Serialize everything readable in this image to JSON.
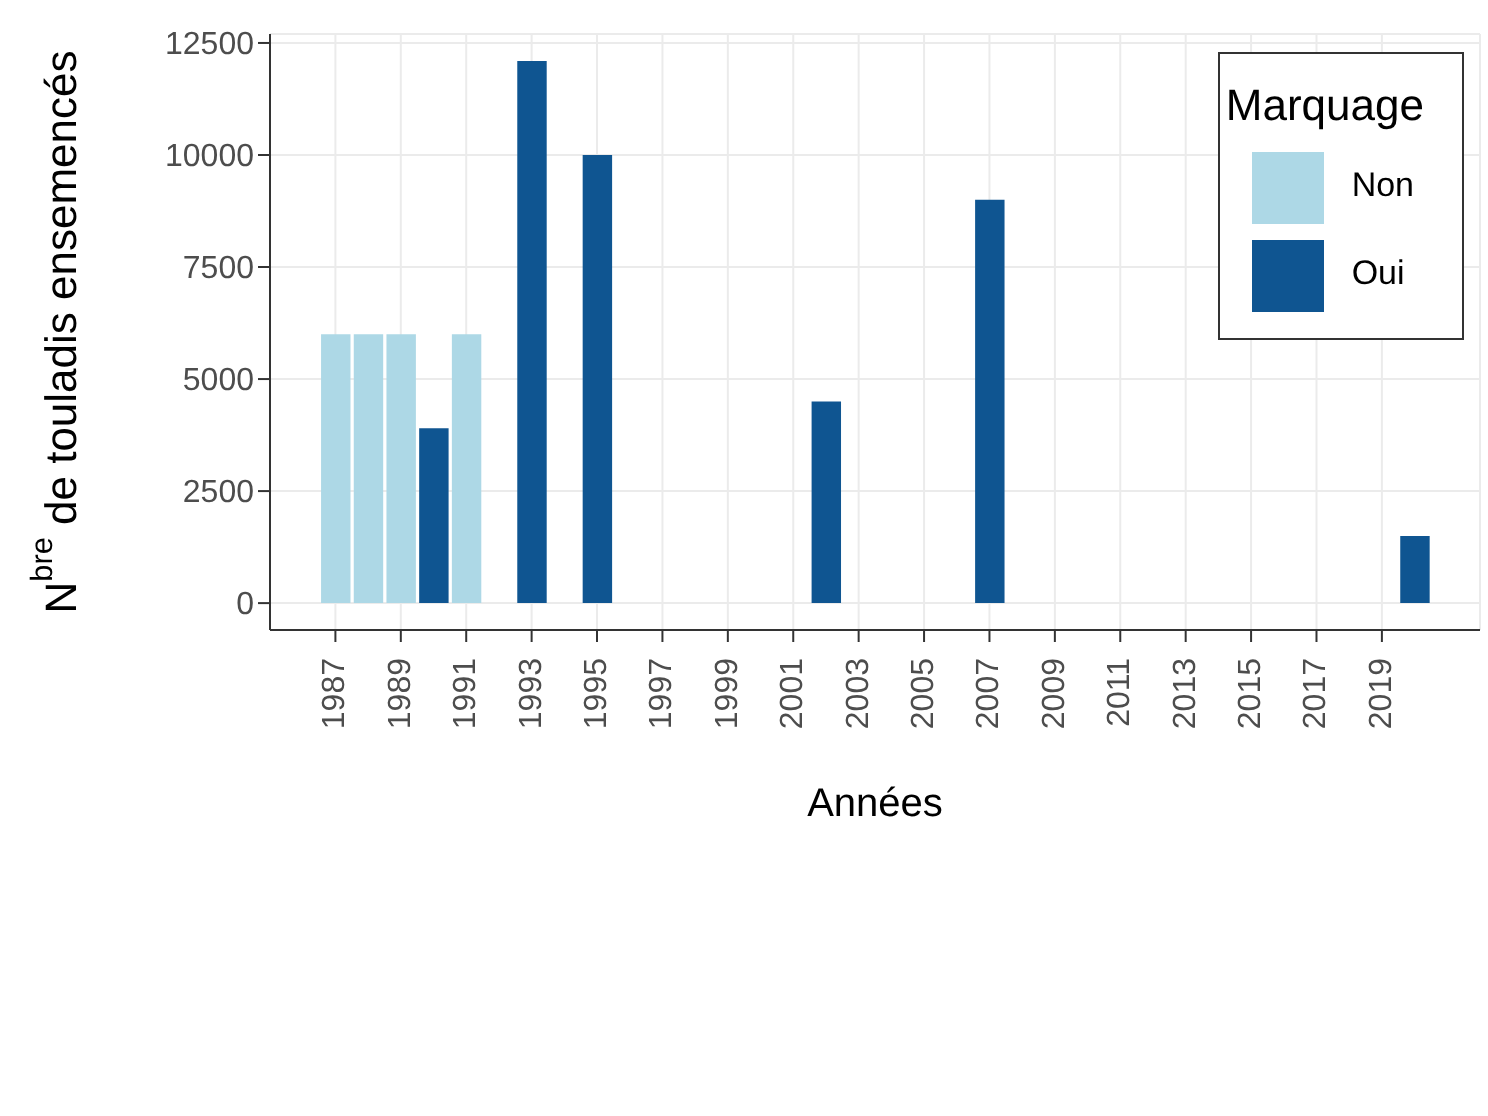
{
  "chart_data": {
    "type": "bar",
    "xlabel": "Années",
    "ylabel": "N$^{bre}$ de touladis ensemencés",
    "legend_title": "Marquage",
    "x": [
      1987,
      1988,
      1989,
      1990,
      1991,
      1993,
      1995,
      2002,
      2007,
      2020
    ],
    "series": [
      {
        "name": "Non",
        "color": "#add8e6",
        "values": [
          6000,
          6000,
          6000,
          null,
          6000,
          null,
          null,
          null,
          null,
          null
        ]
      },
      {
        "name": "Oui",
        "color": "#0f5591",
        "values": [
          null,
          null,
          null,
          3900,
          null,
          12100,
          10000,
          4500,
          9000,
          1500
        ]
      }
    ],
    "xlim": [
      1985,
      2022
    ],
    "xticks": [
      1987,
      1989,
      1991,
      1993,
      1995,
      1997,
      1999,
      2001,
      2003,
      2005,
      2007,
      2009,
      2011,
      2013,
      2015,
      2017,
      2019
    ],
    "ylim": [
      -600,
      12700
    ],
    "yticks": [
      0,
      2500,
      5000,
      7500,
      10000,
      12500
    ],
    "grid": true,
    "legend": "top right"
  }
}
